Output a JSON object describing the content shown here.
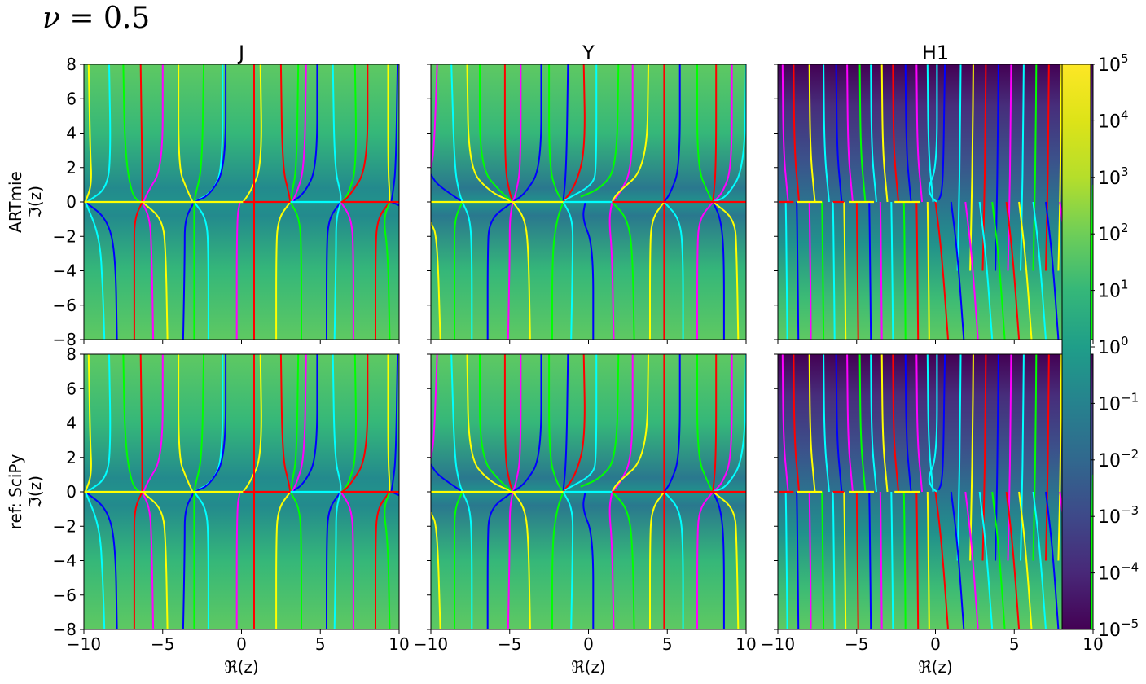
{
  "figure": {
    "suptitle_symbol": "ν",
    "suptitle_value": "= 0.5"
  },
  "chart_data": {
    "type": "heatmap",
    "columns": [
      "J",
      "Y",
      "H1"
    ],
    "rows": [
      "ARTmie\nℑ(z)",
      "ref: SciPy\nℑ(z)"
    ],
    "xlabel": "ℜ(z)",
    "ylabel": "ℑ(z)",
    "xlim": [
      -10,
      10
    ],
    "ylim": [
      -8,
      8
    ],
    "xticks": [
      -10,
      -5,
      0,
      5,
      10
    ],
    "yticks": [
      -8,
      -6,
      -4,
      -2,
      0,
      2,
      4,
      6,
      8
    ],
    "colorbar": {
      "scale": "log",
      "colormap": "viridis",
      "range": [
        1e-05,
        100000
      ],
      "ticks": [
        {
          "base": "10",
          "exp": "5"
        },
        {
          "base": "10",
          "exp": "4"
        },
        {
          "base": "10",
          "exp": "3"
        },
        {
          "base": "10",
          "exp": "2"
        },
        {
          "base": "10",
          "exp": "1"
        },
        {
          "base": "10",
          "exp": "0"
        },
        {
          "base": "10",
          "exp": "−1"
        },
        {
          "base": "10",
          "exp": "−2"
        },
        {
          "base": "10",
          "exp": "−3"
        },
        {
          "base": "10",
          "exp": "−4"
        },
        {
          "base": "10",
          "exp": "−5"
        }
      ]
    },
    "phase_contour_colors": [
      "#ff0000",
      "#ffff00",
      "#00ff00",
      "#00ffff",
      "#0000ff",
      "#ff00ff"
    ],
    "grid": false
  }
}
